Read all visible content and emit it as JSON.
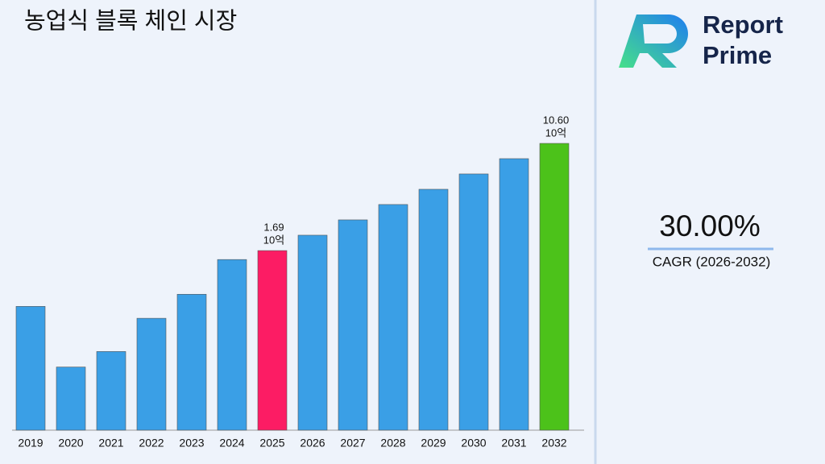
{
  "chart_data": {
    "type": "bar",
    "title": "농업식 블록 체인 시장",
    "categories": [
      "2019",
      "2020",
      "2021",
      "2022",
      "2023",
      "2024",
      "2025",
      "2026",
      "2027",
      "2028",
      "2029",
      "2030",
      "2031",
      "2032"
    ],
    "values": [
      0.65,
      0.23,
      0.3,
      0.53,
      0.8,
      1.45,
      1.69,
      2.2,
      2.86,
      3.72,
      4.83,
      6.28,
      8.16,
      10.6
    ],
    "value_labels": [
      null,
      null,
      null,
      null,
      null,
      null,
      "1.69",
      null,
      null,
      null,
      null,
      null,
      null,
      "10.60"
    ],
    "value_unit": "10억",
    "colors": [
      "#3a9fe6",
      "#3a9fe6",
      "#3a9fe6",
      "#3a9fe6",
      "#3a9fe6",
      "#3a9fe6",
      "#fc1c64",
      "#3a9fe6",
      "#3a9fe6",
      "#3a9fe6",
      "#3a9fe6",
      "#3a9fe6",
      "#3a9fe6",
      "#4cc21a"
    ],
    "ylim": [
      0.078,
      20
    ],
    "log_scale": true
  },
  "brand": {
    "line1": "Report",
    "line2": "Prime"
  },
  "kpi": {
    "value": "30.00%",
    "label": "CAGR (2026-2032)"
  }
}
